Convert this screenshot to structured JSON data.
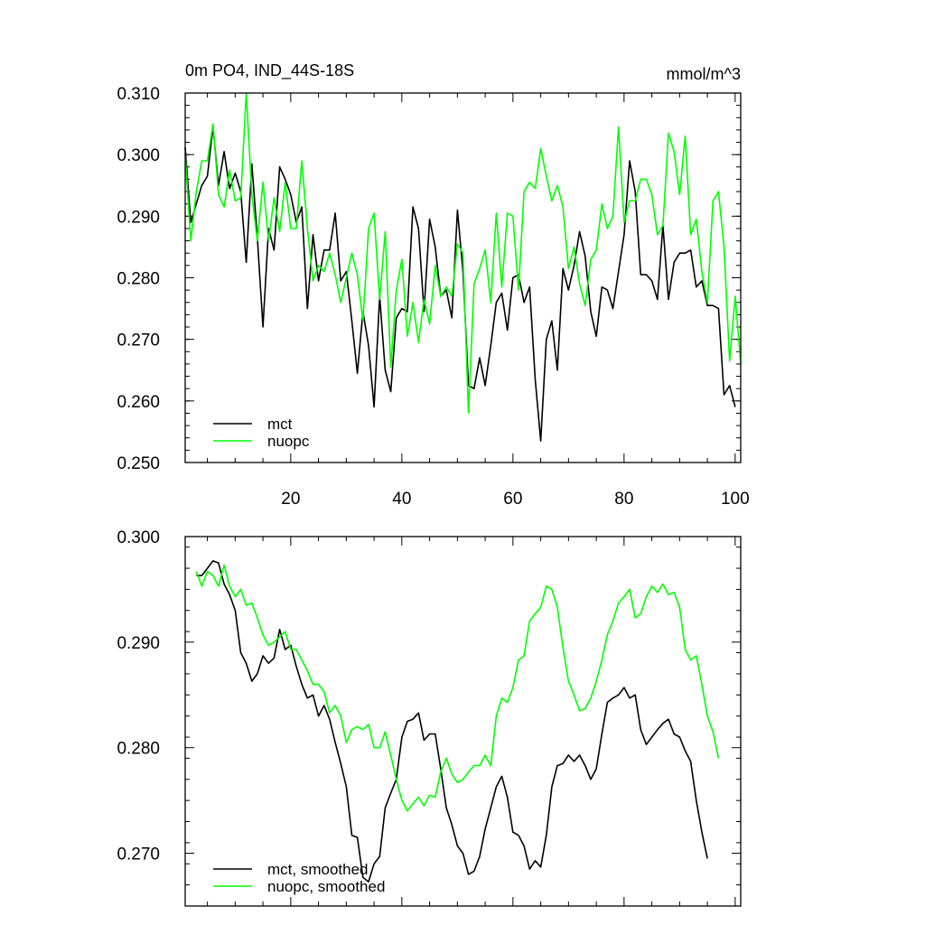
{
  "chart_data": [
    {
      "type": "line",
      "title": "0m PO4, IND_44S-18S",
      "units": "mmol/m^3",
      "xlim": [
        1,
        101
      ],
      "ylim": [
        0.25,
        0.31
      ],
      "xticks": [
        20,
        40,
        60,
        80,
        100
      ],
      "xtick_labels": [
        "20",
        "40",
        "60",
        "80",
        "100"
      ],
      "yticks": [
        0.25,
        0.26,
        0.27,
        0.28,
        0.29,
        0.3,
        0.31
      ],
      "ytick_labels": [
        "0.250",
        "0.260",
        "0.270",
        "0.280",
        "0.290",
        "0.300",
        "0.310"
      ],
      "legend_position": "bottom-left",
      "series": [
        {
          "name": "mct",
          "color": "#000000",
          "x_start": 1,
          "values": [
            0.3012,
            0.289,
            0.292,
            0.295,
            0.2965,
            0.3045,
            0.295,
            0.3005,
            0.2945,
            0.297,
            0.294,
            0.2825,
            0.2985,
            0.2865,
            0.272,
            0.288,
            0.2845,
            0.298,
            0.296,
            0.2935,
            0.289,
            0.2915,
            0.275,
            0.287,
            0.2795,
            0.2845,
            0.2845,
            0.2905,
            0.2795,
            0.281,
            0.273,
            0.2645,
            0.2745,
            0.269,
            0.259,
            0.277,
            0.265,
            0.2615,
            0.2735,
            0.275,
            0.2745,
            0.2915,
            0.288,
            0.2745,
            0.2895,
            0.285,
            0.277,
            0.278,
            0.2735,
            0.291,
            0.281,
            0.2625,
            0.262,
            0.267,
            0.2625,
            0.269,
            0.276,
            0.2775,
            0.2715,
            0.28,
            0.2805,
            0.276,
            0.2785,
            0.2635,
            0.2535,
            0.27,
            0.273,
            0.265,
            0.2815,
            0.278,
            0.282,
            0.2875,
            0.2835,
            0.2745,
            0.2705,
            0.2785,
            0.278,
            0.275,
            0.281,
            0.287,
            0.299,
            0.294,
            0.2805,
            0.2805,
            0.2795,
            0.2765,
            0.2885,
            0.2765,
            0.2825,
            0.284,
            0.284,
            0.2845,
            0.2785,
            0.2795,
            0.2755,
            0.2755,
            0.275,
            0.261,
            0.2625,
            0.259
          ]
        },
        {
          "name": "nuopc",
          "color": "#00ff00",
          "x_start": 1,
          "values": [
            0.3,
            0.286,
            0.294,
            0.299,
            0.299,
            0.305,
            0.2935,
            0.2915,
            0.2975,
            0.2925,
            0.293,
            0.31,
            0.2935,
            0.286,
            0.2955,
            0.286,
            0.293,
            0.2875,
            0.2955,
            0.288,
            0.288,
            0.299,
            0.288,
            0.2795,
            0.282,
            0.281,
            0.284,
            0.2805,
            0.276,
            0.28,
            0.284,
            0.2805,
            0.273,
            0.288,
            0.2905,
            0.2765,
            0.2875,
            0.2655,
            0.278,
            0.283,
            0.2705,
            0.276,
            0.2695,
            0.2765,
            0.2725,
            0.282,
            0.277,
            0.2785,
            0.277,
            0.2855,
            0.284,
            0.258,
            0.279,
            0.2815,
            0.2845,
            0.276,
            0.2905,
            0.2785,
            0.2905,
            0.29,
            0.278,
            0.294,
            0.2955,
            0.2945,
            0.301,
            0.2965,
            0.2925,
            0.295,
            0.2915,
            0.2815,
            0.285,
            0.279,
            0.2755,
            0.283,
            0.2845,
            0.292,
            0.288,
            0.29,
            0.3045,
            0.289,
            0.2925,
            0.2925,
            0.296,
            0.296,
            0.2935,
            0.287,
            0.2885,
            0.3035,
            0.3005,
            0.2935,
            0.303,
            0.287,
            0.2895,
            0.281,
            0.276,
            0.2925,
            0.294,
            0.285,
            0.2665,
            0.277,
            0.266
          ]
        }
      ]
    },
    {
      "type": "line",
      "xlim": [
        1,
        101
      ],
      "ylim": [
        0.265,
        0.3
      ],
      "xticks": [
        20,
        40,
        60,
        80,
        100
      ],
      "yticks": [
        0.27,
        0.28,
        0.29,
        0.3
      ],
      "ytick_labels": [
        "0.270",
        "0.280",
        "0.290",
        "0.300"
      ],
      "legend_position": "bottom-left",
      "series": [
        {
          "name": "mct, smoothed",
          "color": "#000000",
          "x_start": 3,
          "values": [
            0.2963,
            0.2963,
            0.297,
            0.2977,
            0.2975,
            0.2955,
            0.2945,
            0.293,
            0.289,
            0.288,
            0.2863,
            0.287,
            0.2887,
            0.288,
            0.2885,
            0.2912,
            0.2893,
            0.2897,
            0.2877,
            0.286,
            0.2847,
            0.285,
            0.283,
            0.284,
            0.2827,
            0.2805,
            0.2785,
            0.2763,
            0.2717,
            0.2715,
            0.2677,
            0.2673,
            0.269,
            0.2697,
            0.2743,
            0.2757,
            0.277,
            0.281,
            0.2825,
            0.2827,
            0.2833,
            0.2807,
            0.2813,
            0.2813,
            0.278,
            0.2743,
            0.2727,
            0.2707,
            0.27,
            0.268,
            0.2683,
            0.2697,
            0.2723,
            0.2743,
            0.2763,
            0.2773,
            0.2753,
            0.272,
            0.2717,
            0.2707,
            0.2685,
            0.2693,
            0.2687,
            0.2717,
            0.2763,
            0.2783,
            0.2785,
            0.2793,
            0.2787,
            0.2793,
            0.2783,
            0.277,
            0.278,
            0.2813,
            0.2843,
            0.2847,
            0.285,
            0.2857,
            0.2847,
            0.285,
            0.2817,
            0.2803,
            0.281,
            0.2817,
            0.2823,
            0.2827,
            0.2813,
            0.281,
            0.2797,
            0.2787,
            0.275,
            0.272,
            0.2695
          ]
        },
        {
          "name": "nuopc, smoothed",
          "color": "#00ff00",
          "x_start": 3,
          "values": [
            0.2967,
            0.2953,
            0.2967,
            0.2963,
            0.2953,
            0.2973,
            0.2953,
            0.2943,
            0.295,
            0.2935,
            0.2937,
            0.2923,
            0.2907,
            0.2897,
            0.29,
            0.2905,
            0.291,
            0.2893,
            0.2893,
            0.2883,
            0.2873,
            0.286,
            0.286,
            0.2853,
            0.2833,
            0.284,
            0.283,
            0.2805,
            0.2817,
            0.282,
            0.2817,
            0.2822,
            0.28,
            0.28,
            0.2815,
            0.2793,
            0.277,
            0.275,
            0.274,
            0.2747,
            0.2753,
            0.2745,
            0.2755,
            0.2753,
            0.2777,
            0.279,
            0.2775,
            0.2767,
            0.277,
            0.2777,
            0.2783,
            0.2783,
            0.2793,
            0.2783,
            0.283,
            0.2847,
            0.2843,
            0.2857,
            0.2883,
            0.2887,
            0.292,
            0.2927,
            0.2933,
            0.2953,
            0.295,
            0.2933,
            0.2895,
            0.2863,
            0.285,
            0.2835,
            0.2837,
            0.2847,
            0.2863,
            0.2883,
            0.2907,
            0.292,
            0.2937,
            0.2943,
            0.295,
            0.2923,
            0.2927,
            0.2943,
            0.2953,
            0.2947,
            0.2955,
            0.2945,
            0.2947,
            0.2933,
            0.2893,
            0.2883,
            0.2887,
            0.286,
            0.283,
            0.2815,
            0.279
          ]
        }
      ]
    }
  ]
}
